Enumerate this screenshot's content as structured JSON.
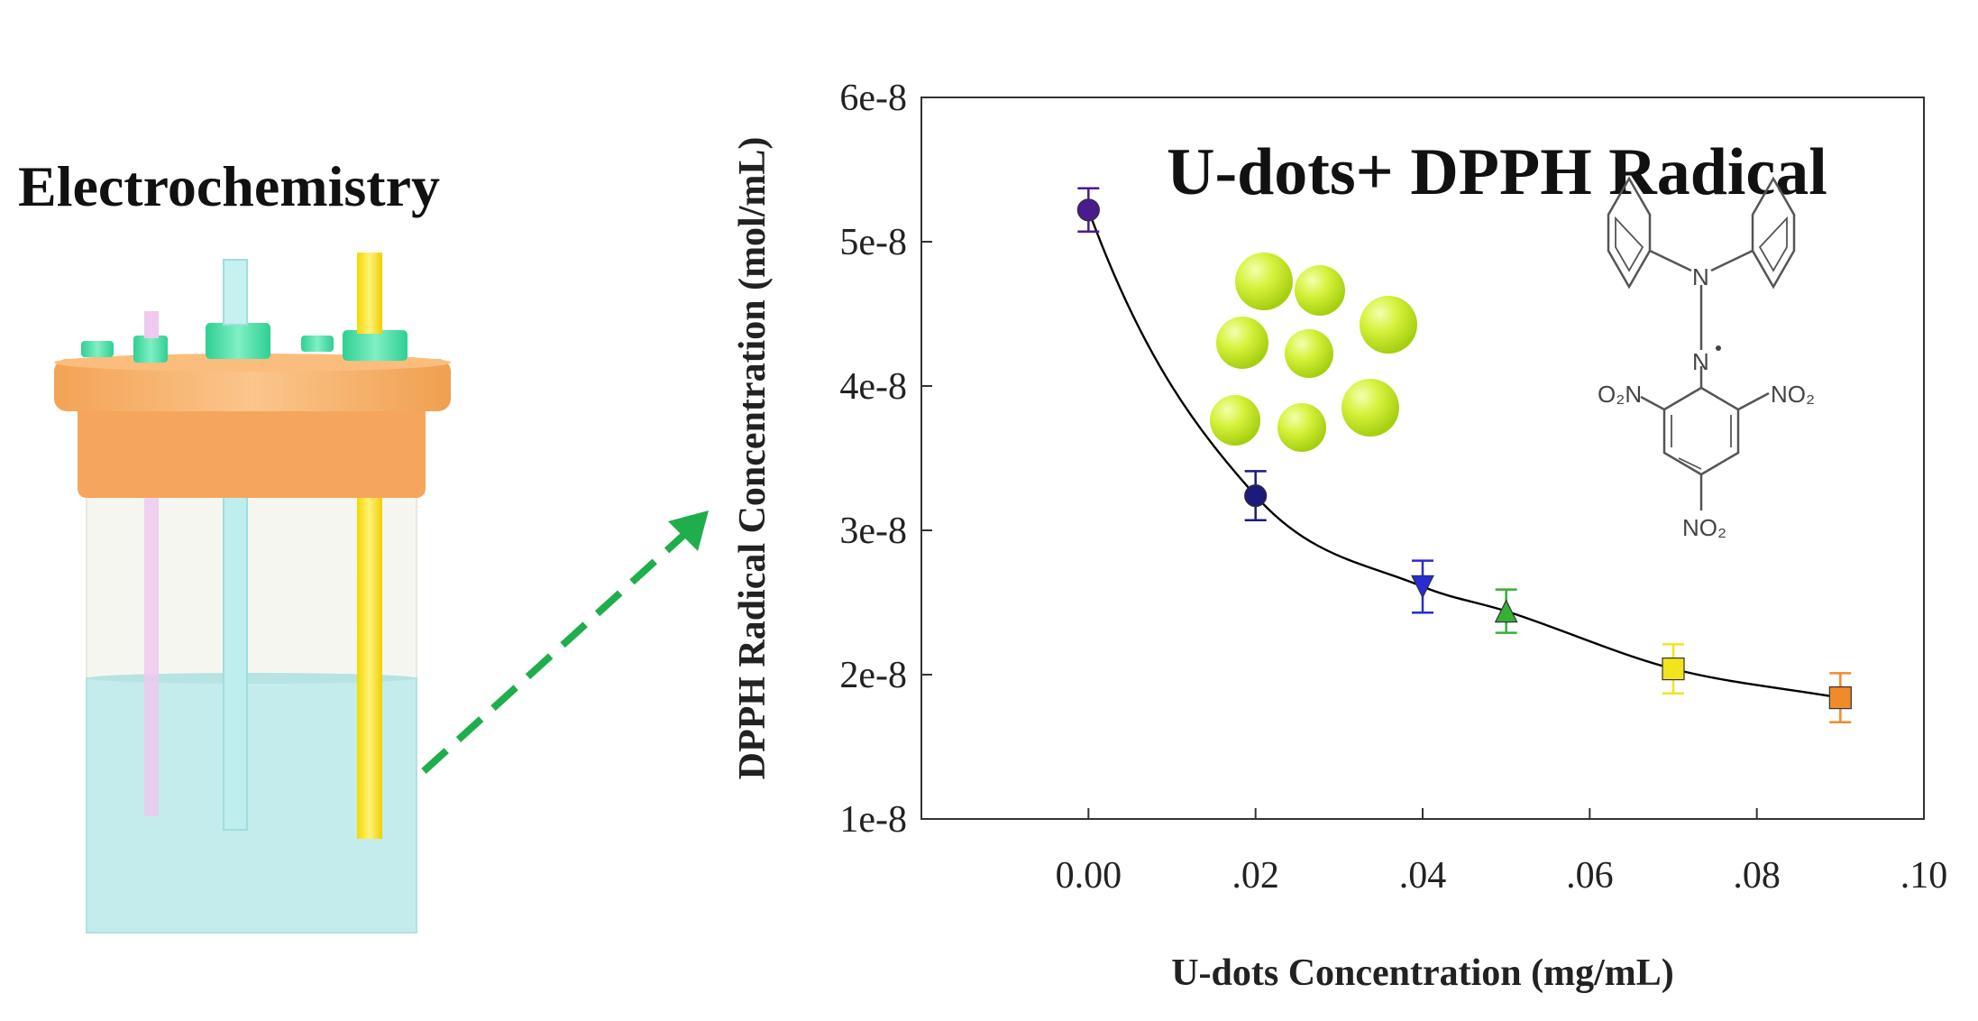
{
  "left_panel": {
    "title": "Electrochemistry"
  },
  "chart_data": {
    "type": "scatter",
    "title": "U-dots+ DPPH Radical",
    "xlabel": "U-dots Concentration (mg/mL)",
    "ylabel": "DPPH Radical Concentration (mol/mL)",
    "xlim": [
      -0.02,
      0.1
    ],
    "ylim": [
      1e-08,
      6e-08
    ],
    "x_ticks": [
      {
        "value": 0.0,
        "label": "0.00"
      },
      {
        "value": 0.02,
        "label": ".02"
      },
      {
        "value": 0.04,
        "label": ".04"
      },
      {
        "value": 0.06,
        "label": ".06"
      },
      {
        "value": 0.08,
        "label": ".08"
      },
      {
        "value": 0.1,
        "label": ".10"
      }
    ],
    "y_ticks": [
      {
        "value": 1e-08,
        "label": "1e-8"
      },
      {
        "value": 2e-08,
        "label": "2e-8"
      },
      {
        "value": 3e-08,
        "label": "3e-8"
      },
      {
        "value": 4e-08,
        "label": "4e-8"
      },
      {
        "value": 5e-08,
        "label": "5e-8"
      },
      {
        "value": 6e-08,
        "label": "6e-8"
      }
    ],
    "grid": false,
    "points": [
      {
        "x": 0.0,
        "y": 5.22e-08,
        "err": 1.5e-09,
        "color": "#4b1a8c",
        "marker": "circle"
      },
      {
        "x": 0.02,
        "y": 3.24e-08,
        "err": 1.7e-09,
        "color": "#1c1a7a",
        "marker": "circle"
      },
      {
        "x": 0.04,
        "y": 2.61e-08,
        "err": 1.8e-09,
        "color": "#2a2ad6",
        "marker": "triangle-down"
      },
      {
        "x": 0.05,
        "y": 2.44e-08,
        "err": 1.5e-09,
        "color": "#35b035",
        "marker": "triangle-up"
      },
      {
        "x": 0.07,
        "y": 2.04e-08,
        "err": 1.7e-09,
        "color": "#f2e41a",
        "marker": "square"
      },
      {
        "x": 0.09,
        "y": 1.84e-08,
        "err": 1.7e-09,
        "color": "#f08a2a",
        "marker": "square"
      }
    ],
    "fit_curve": {
      "color": "#000000"
    }
  },
  "molecule_labels": {
    "n1": "N",
    "n2": "N",
    "o2n_left": "O₂N",
    "no2_right": "NO₂",
    "no2_bottom": "NO₂"
  },
  "colors": {
    "arrow": "#1fae4c",
    "nanodot": "#c6ef2a",
    "lid": "#f7a95e",
    "solution": "#bfe9e9"
  }
}
